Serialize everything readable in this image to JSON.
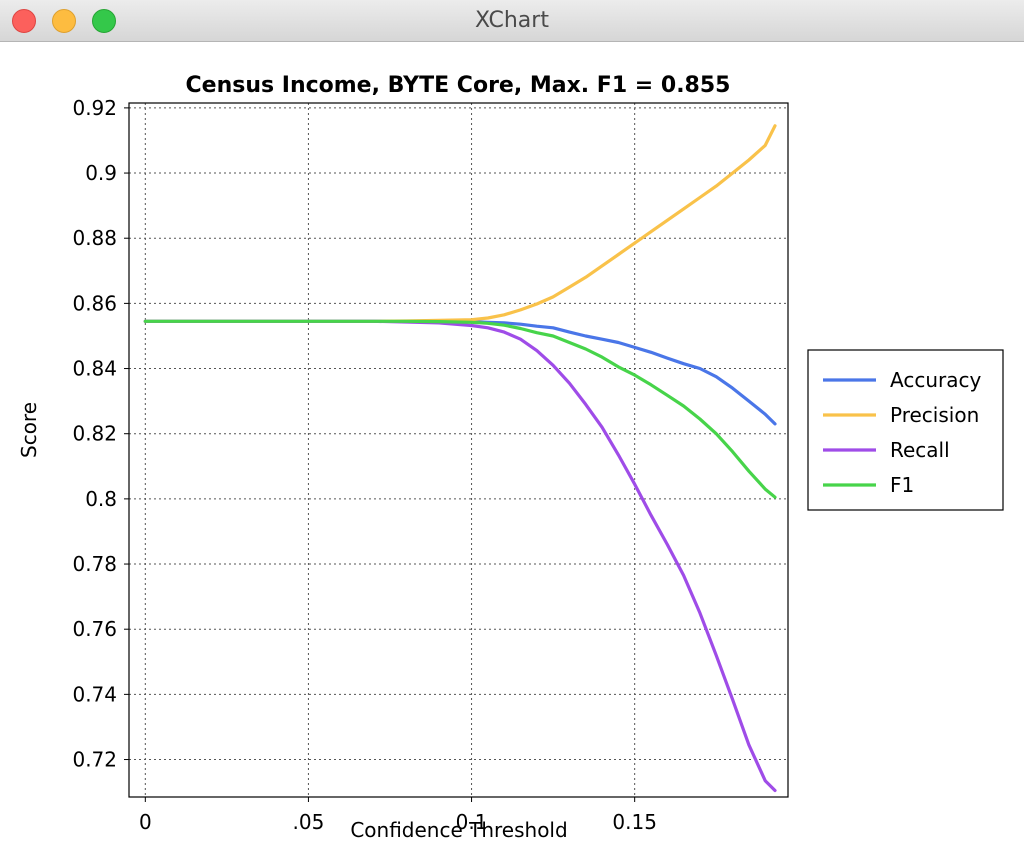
{
  "window": {
    "title": "XChart",
    "buttons": {
      "close": "close-icon",
      "minimize": "minimize-icon",
      "zoom": "zoom-icon"
    }
  },
  "chart_data": {
    "type": "line",
    "title": "Census Income, BYTE Core, Max. F1 = 0.855",
    "xlabel": "Confidence Threshold",
    "ylabel": "Score",
    "xlim": [
      -0.005,
      0.197
    ],
    "ylim": [
      0.7085,
      0.9215
    ],
    "x_ticks": [
      {
        "value": 0,
        "label": "0"
      },
      {
        "value": 0.05,
        "label": ".05"
      },
      {
        "value": 0.1,
        "label": "0.1"
      },
      {
        "value": 0.15,
        "label": "0.15"
      }
    ],
    "y_ticks": [
      {
        "value": 0.72,
        "label": "0.72"
      },
      {
        "value": 0.74,
        "label": "0.74"
      },
      {
        "value": 0.76,
        "label": "0.76"
      },
      {
        "value": 0.78,
        "label": "0.78"
      },
      {
        "value": 0.8,
        "label": "0.8"
      },
      {
        "value": 0.82,
        "label": "0.82"
      },
      {
        "value": 0.84,
        "label": "0.84"
      },
      {
        "value": 0.86,
        "label": "0.86"
      },
      {
        "value": 0.88,
        "label": "0.88"
      },
      {
        "value": 0.9,
        "label": "0.9"
      },
      {
        "value": 0.92,
        "label": "0.92"
      }
    ],
    "grid": true,
    "legend_position": "outside-right",
    "x": [
      0,
      0.01,
      0.02,
      0.03,
      0.04,
      0.05,
      0.06,
      0.07,
      0.08,
      0.09,
      0.1,
      0.105,
      0.11,
      0.115,
      0.12,
      0.125,
      0.13,
      0.135,
      0.14,
      0.145,
      0.15,
      0.155,
      0.16,
      0.165,
      0.17,
      0.175,
      0.18,
      0.185,
      0.19,
      0.193
    ],
    "series": [
      {
        "name": "Accuracy",
        "color": "#4a76e8",
        "values": [
          0.8545,
          0.8545,
          0.8545,
          0.8545,
          0.8545,
          0.8545,
          0.8545,
          0.8545,
          0.8545,
          0.8545,
          0.8544,
          0.8542,
          0.854,
          0.8536,
          0.853,
          0.8525,
          0.8512,
          0.85,
          0.849,
          0.848,
          0.8465,
          0.845,
          0.8432,
          0.8415,
          0.84,
          0.8375,
          0.834,
          0.83,
          0.826,
          0.823
        ]
      },
      {
        "name": "Precision",
        "color": "#f9c24a",
        "values": [
          0.8545,
          0.8545,
          0.8545,
          0.8545,
          0.8545,
          0.8545,
          0.8545,
          0.8545,
          0.8546,
          0.8548,
          0.855,
          0.8555,
          0.8565,
          0.858,
          0.8598,
          0.862,
          0.865,
          0.868,
          0.8715,
          0.875,
          0.8785,
          0.882,
          0.8855,
          0.889,
          0.8925,
          0.896,
          0.9,
          0.904,
          0.9085,
          0.9145
        ]
      },
      {
        "name": "Recall",
        "color": "#9f4ce8",
        "values": [
          0.8545,
          0.8545,
          0.8545,
          0.8545,
          0.8545,
          0.8545,
          0.8545,
          0.8545,
          0.8543,
          0.854,
          0.8532,
          0.8525,
          0.8512,
          0.849,
          0.8455,
          0.841,
          0.8355,
          0.829,
          0.822,
          0.8135,
          0.8045,
          0.795,
          0.786,
          0.7765,
          0.765,
          0.752,
          0.7385,
          0.7245,
          0.7135,
          0.7105
        ]
      },
      {
        "name": "F1",
        "color": "#47d44a",
        "values": [
          0.8545,
          0.8545,
          0.8545,
          0.8545,
          0.8545,
          0.8545,
          0.8545,
          0.8545,
          0.8545,
          0.8544,
          0.8542,
          0.8539,
          0.8533,
          0.8523,
          0.851,
          0.85,
          0.848,
          0.846,
          0.8435,
          0.8405,
          0.838,
          0.835,
          0.8318,
          0.8285,
          0.8245,
          0.82,
          0.8145,
          0.8085,
          0.803,
          0.8005
        ]
      }
    ]
  }
}
